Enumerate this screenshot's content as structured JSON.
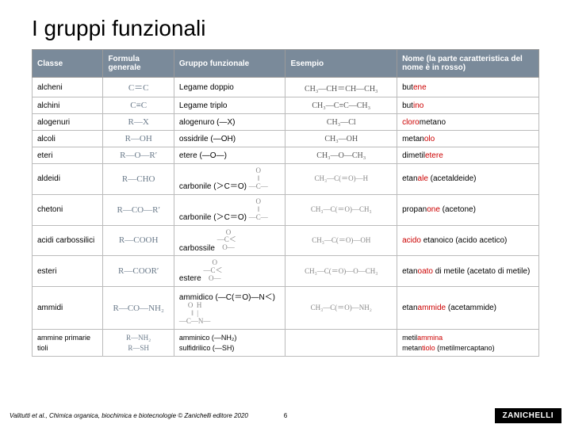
{
  "title": "I gruppi funzionali",
  "headers": {
    "c1": "Classe",
    "c2": "Formula generale",
    "c3": "Gruppo funzionale",
    "c4": "Esempio",
    "c5": "Nome (la parte caratteristica del nome è in rosso)"
  },
  "rows": [
    {
      "cls": "alcheni",
      "formula": "C＝C",
      "funz": "Legame doppio",
      "esempio": "CH₃—CH＝CH—CH₃",
      "nome_pre": "but",
      "nome_red": "ene",
      "nome_post": ""
    },
    {
      "cls": "alchini",
      "formula": "C≡C",
      "funz": "Legame triplo",
      "esempio": "CH₃—C≡C—CH₃",
      "nome_pre": "but",
      "nome_red": "ino",
      "nome_post": ""
    },
    {
      "cls": "alogenuri",
      "formula": "R—X",
      "funz": "alogenuro (—X)",
      "esempio": "CH₃—Cl",
      "nome_pre": "",
      "nome_red": "cloro",
      "nome_post": "metano"
    },
    {
      "cls": "alcoli",
      "formula": "R—OH",
      "funz": "ossidrile (—OH)",
      "esempio": "CH₃—OH",
      "nome_pre": "metan",
      "nome_red": "olo",
      "nome_post": ""
    },
    {
      "cls": "eteri",
      "formula": "R—O—R′",
      "funz": "etere (—O—)",
      "esempio": "CH₃—O—CH₃",
      "nome_pre": "dimetil",
      "nome_red": "etere",
      "nome_post": ""
    }
  ],
  "rows2": [
    {
      "cls": "aldeidi",
      "formula": "R—CHO",
      "funz_t": "carbonile (＞C＝O)",
      "funz_b": "",
      "esempio": "CH₃—C(＝O)—H",
      "nome_pre": "etan",
      "nome_red": "ale",
      "nome_post": " (acetaldeide)"
    },
    {
      "cls": "chetoni",
      "formula": "R—CO—R′",
      "funz_t": "carbonile (＞C＝O)",
      "funz_b": "",
      "esempio": "CH₃—C(＝O)—CH₃",
      "nome_pre": "propan",
      "nome_red": "one",
      "nome_post": " (acetone)"
    },
    {
      "cls": "acidi carbossilici",
      "formula": "R—COOH",
      "funz_t": "carbossile",
      "funz_b": "",
      "esempio": "CH₃—C(＝O)—OH",
      "nome_pre": "",
      "nome_red": "acido",
      "nome_post": " etanoico (acido acetico)"
    },
    {
      "cls": "esteri",
      "formula": "R—COOR′",
      "funz_t": "estere",
      "funz_b": "",
      "esempio": "CH₃—C(＝O)—O—CH₃",
      "nome_pre": "etan",
      "nome_red": "oato",
      "nome_post": " di metile (acetato di metile)"
    },
    {
      "cls": "ammidi",
      "formula": "R—CO—NH₂",
      "funz_t": "ammidico (—C(＝O)—N＜)",
      "funz_b": "",
      "esempio": "CH₃—C(＝O)—NH₂",
      "nome_pre": "etan",
      "nome_red": "ammide",
      "nome_post": " (acetammide)"
    }
  ],
  "rows3": {
    "cls1": "ammine primarie",
    "f1": "R—NH₂",
    "fz1": "amminico (—NH₂)",
    "n1_pre": "metil",
    "n1_red": "ammina",
    "cls2": "tioli",
    "f2": "R—SH",
    "fz2": "sulfidrilico (—SH)",
    "n2_pre": "metan",
    "n2_red": "tiolo",
    "n2_post": " (metilmercaptano)"
  },
  "footer": {
    "left": "Valitutti et al., Chimica organica, biochimica e biotecnologie © Zanichelli editore 2020",
    "page": "6",
    "logo": "ZANICHELLI"
  },
  "colors": {
    "header_bg": "#7a8a9a",
    "header_fg": "#ffffff",
    "border": "#bbbbbb",
    "red": "#cc0000",
    "dim": "#888888",
    "text": "#000000"
  },
  "col_widths_pct": [
    14,
    14,
    22,
    22,
    28
  ]
}
